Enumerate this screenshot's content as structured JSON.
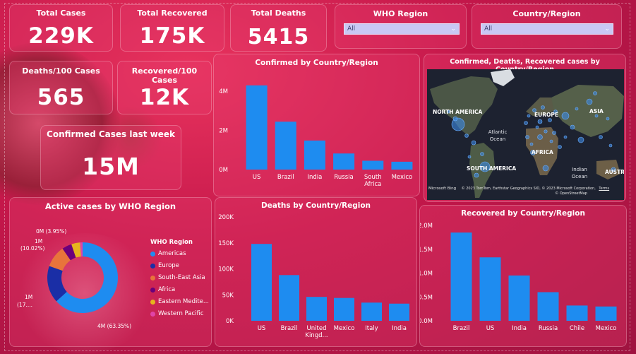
{
  "kpis": {
    "total_cases": {
      "title": "Total Cases",
      "value": "229K"
    },
    "total_recovered": {
      "title": "Total Recovered",
      "value": "175K"
    },
    "total_deaths": {
      "title": "Total Deaths",
      "value": "5415"
    },
    "deaths_per_100": {
      "title": "Deaths/100 Cases",
      "value": "565"
    },
    "recovered_per_100": {
      "title": "Recovered/100 Cases",
      "value": "12K"
    },
    "confirmed_last_week": {
      "title": "Confirmed Cases last week",
      "value": "15M"
    }
  },
  "slicers": {
    "who_region": {
      "title": "WHO Region",
      "value": "All"
    },
    "country_region": {
      "title": "Country/Region",
      "value": "All"
    }
  },
  "map": {
    "title": "Confirmed, Deaths, Recovered cases by Country/Region",
    "labels": {
      "north_america": "NORTH AMERICA",
      "europe": "EUROPE",
      "asia": "ASIA",
      "atlantic": "Atlantic Ocean",
      "africa": "AFRICA",
      "south_america": "SOUTH AMERICA",
      "indian": "Indian Ocean",
      "australia": "AUSTR"
    },
    "brand": "Microsoft Bing",
    "copyright": "© 2023 TomTom, Earthstar Geographics SIO, © 2023 Microsoft Corporation,",
    "terms": "Terms",
    "osm": "© OpenStreetMap"
  },
  "colors": {
    "bar": "#1e8cf0",
    "americas": "#1e8cf0",
    "europe": "#1a2ea6",
    "south_east_asia": "#e8743b",
    "africa": "#6b007b",
    "eastern_mediterranean": "#e6b41e",
    "western_pacific": "#e044a7"
  },
  "donut_labels": {
    "top": "0M (3.95%)",
    "left_a": "1M",
    "left_b": "(10.02%)",
    "lower_a": "1M",
    "lower_b": "(17....",
    "bottom": "4M (63.35%)"
  },
  "chart_data": [
    {
      "id": "confirmed",
      "type": "bar",
      "title": "Confirmed by Country/Region",
      "categories": [
        "US",
        "Brazil",
        "India",
        "Russia",
        "South Africa",
        "Mexico"
      ],
      "category_lines": [
        [
          "US"
        ],
        [
          "Brazil"
        ],
        [
          "India"
        ],
        [
          "Russia"
        ],
        [
          "South",
          "Africa"
        ],
        [
          "Mexico"
        ]
      ],
      "values": [
        4290000,
        2440000,
        1480000,
        820000,
        450000,
        400000
      ],
      "ylim": [
        0,
        4500000
      ],
      "yticks": [
        0,
        2000000,
        4000000
      ],
      "ytick_labels": [
        "0M",
        "2M",
        "4M"
      ]
    },
    {
      "id": "deaths",
      "type": "bar",
      "title": "Deaths by Country/Region",
      "categories": [
        "US",
        "Brazil",
        "United Kingd...",
        "Mexico",
        "Italy",
        "India"
      ],
      "category_lines": [
        [
          "US"
        ],
        [
          "Brazil"
        ],
        [
          "United",
          "Kingd..."
        ],
        [
          "Mexico"
        ],
        [
          "Italy"
        ],
        [
          "India"
        ]
      ],
      "values": [
        148000,
        88000,
        46000,
        44000,
        35000,
        33000
      ],
      "ylim": [
        0,
        200000
      ],
      "yticks": [
        0,
        50000,
        100000,
        150000,
        200000
      ],
      "ytick_labels": [
        "0K",
        "50K",
        "100K",
        "150K",
        "200K"
      ]
    },
    {
      "id": "recovered",
      "type": "bar",
      "title": "Recovered by Country/Region",
      "categories": [
        "Brazil",
        "US",
        "India",
        "Russia",
        "Chile",
        "Mexico"
      ],
      "category_lines": [
        [
          "Brazil"
        ],
        [
          "US"
        ],
        [
          "India"
        ],
        [
          "Russia"
        ],
        [
          "Chile"
        ],
        [
          "Mexico"
        ]
      ],
      "values": [
        1850000,
        1330000,
        950000,
        600000,
        320000,
        300000
      ],
      "ylim": [
        0,
        2000000
      ],
      "yticks": [
        0,
        500000,
        1000000,
        1500000,
        2000000
      ],
      "ytick_labels": [
        "0.0M",
        "0.5M",
        "1.0M",
        "1.5M",
        "2.0M"
      ]
    },
    {
      "id": "active_who",
      "type": "pie",
      "title": "Active cases by WHO Region",
      "legend_title": "WHO Region",
      "categories": [
        "Americas",
        "Europe",
        "South-East Asia",
        "Africa",
        "Eastern Medite...",
        "Western Pacific"
      ],
      "values": [
        63.35,
        17.0,
        10.02,
        4.5,
        3.95,
        1.18
      ],
      "color_keys": [
        "americas",
        "europe",
        "south_east_asia",
        "africa",
        "eastern_mediterranean",
        "western_pacific"
      ]
    }
  ]
}
